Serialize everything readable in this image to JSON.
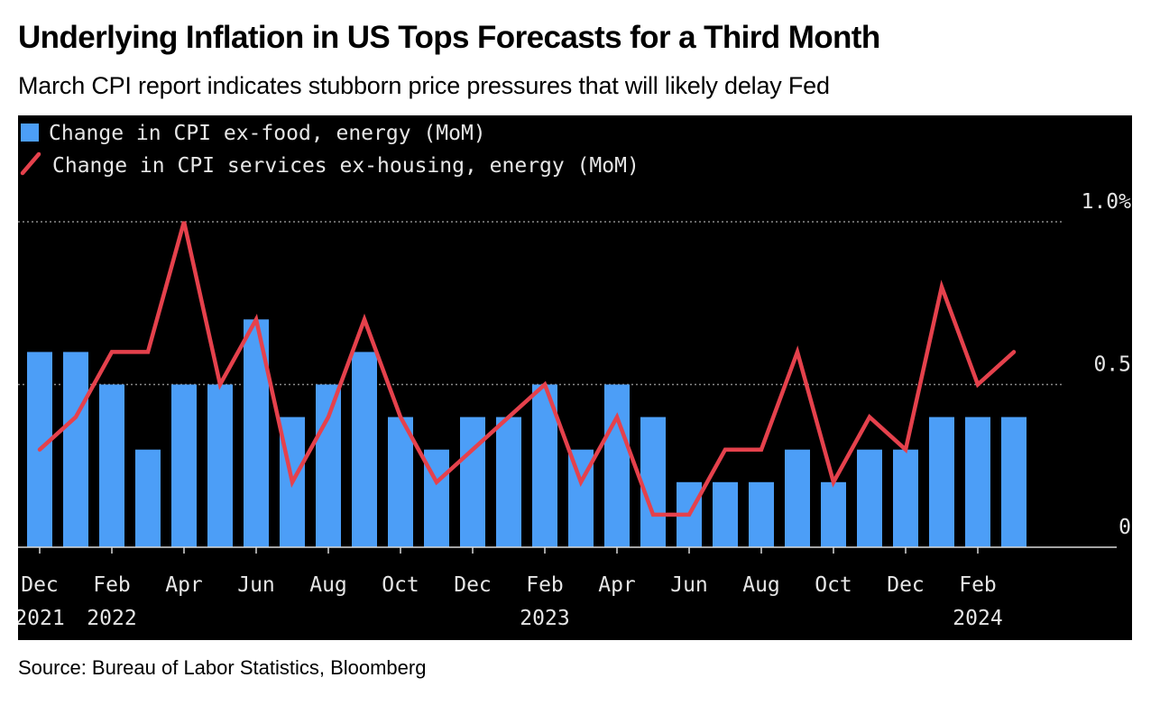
{
  "chart_data": {
    "type": "bar",
    "title": "Underlying Inflation in US Tops Forecasts for a Third Month",
    "subtitle": "March CPI report indicates stubborn price pressures that will likely delay Fed",
    "source": "Source: Bureau of Labor Statistics, Bloomberg",
    "categories": [
      "Dec 2021",
      "Jan 2022",
      "Feb 2022",
      "Mar 2022",
      "Apr 2022",
      "May 2022",
      "Jun 2022",
      "Jul 2022",
      "Aug 2022",
      "Sep 2022",
      "Oct 2022",
      "Nov 2022",
      "Dec 2022",
      "Jan 2023",
      "Feb 2023",
      "Mar 2023",
      "Apr 2023",
      "May 2023",
      "Jun 2023",
      "Jul 2023",
      "Aug 2023",
      "Sep 2023",
      "Oct 2023",
      "Nov 2023",
      "Dec 2023",
      "Jan 2024",
      "Feb 2024",
      "Mar 2024"
    ],
    "series": [
      {
        "name": "Change in CPI ex-food, energy (MoM)",
        "type": "bar",
        "color": "#4c9ef7",
        "values": [
          0.6,
          0.6,
          0.5,
          0.3,
          0.5,
          0.5,
          0.7,
          0.4,
          0.5,
          0.6,
          0.4,
          0.3,
          0.4,
          0.4,
          0.5,
          0.3,
          0.5,
          0.4,
          0.2,
          0.2,
          0.2,
          0.3,
          0.2,
          0.3,
          0.3,
          0.4,
          0.4,
          0.4
        ]
      },
      {
        "name": "Change in CPI services ex-housing, energy (MoM)",
        "type": "line",
        "color": "#e5414c",
        "values": [
          0.3,
          0.4,
          0.6,
          0.6,
          1.0,
          0.5,
          0.7,
          0.2,
          0.4,
          0.7,
          0.4,
          0.2,
          0.3,
          0.4,
          0.5,
          0.2,
          0.4,
          0.1,
          0.1,
          0.3,
          0.3,
          0.6,
          0.2,
          0.4,
          0.3,
          0.8,
          0.5,
          0.6
        ]
      }
    ],
    "ylim": [
      0,
      1.0
    ],
    "yticks": [
      {
        "value": 0,
        "label": "0"
      },
      {
        "value": 0.5,
        "label": "0.5"
      },
      {
        "value": 1.0,
        "label": "1.0%"
      }
    ],
    "xticks": [
      {
        "index": 0,
        "month": "Dec",
        "year": "2021"
      },
      {
        "index": 2,
        "month": "Feb",
        "year": "2022"
      },
      {
        "index": 4,
        "month": "Apr",
        "year": ""
      },
      {
        "index": 6,
        "month": "Jun",
        "year": ""
      },
      {
        "index": 8,
        "month": "Aug",
        "year": ""
      },
      {
        "index": 10,
        "month": "Oct",
        "year": ""
      },
      {
        "index": 12,
        "month": "Dec",
        "year": ""
      },
      {
        "index": 14,
        "month": "Feb",
        "year": "2023"
      },
      {
        "index": 16,
        "month": "Apr",
        "year": ""
      },
      {
        "index": 18,
        "month": "Jun",
        "year": ""
      },
      {
        "index": 20,
        "month": "Aug",
        "year": ""
      },
      {
        "index": 22,
        "month": "Oct",
        "year": ""
      },
      {
        "index": 24,
        "month": "Dec",
        "year": ""
      },
      {
        "index": 26,
        "month": "Feb",
        "year": "2024"
      }
    ],
    "grid": true,
    "legend_position": "top-left",
    "colors": {
      "background": "#000000",
      "text": "#e6e6e6",
      "grid": "#8a8a8a",
      "axis": "#d9d9d9"
    }
  }
}
